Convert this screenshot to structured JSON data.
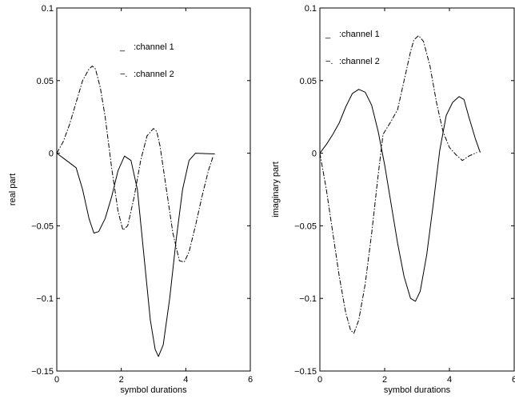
{
  "chart_data": [
    {
      "type": "line",
      "xlabel": "symbol durations",
      "ylabel": "real part",
      "xlim": [
        0,
        6
      ],
      "ylim": [
        -0.15,
        0.1
      ],
      "xticks": [
        0,
        2,
        4,
        6
      ],
      "yticks": [
        -0.15,
        -0.1,
        -0.05,
        0,
        0.05,
        0.1
      ],
      "xtick_labels": [
        "0",
        "2",
        "4",
        "6"
      ],
      "ytick_labels": [
        "−0.15",
        "−0.1",
        "−0.05",
        "0",
        "0.05",
        "0.1"
      ],
      "grid": false,
      "legend_placement": "top-right",
      "legend": [
        {
          "marker": "_",
          "text": ":channel 1",
          "style": "solid"
        },
        {
          "marker": "−.",
          "text": ":channel 2",
          "style": "dashdot"
        }
      ],
      "series": [
        {
          "style": "solid",
          "x": [
            0,
            0.3,
            0.6,
            0.8,
            1.0,
            1.15,
            1.3,
            1.5,
            1.7,
            1.9,
            2.1,
            2.3,
            2.5,
            2.7,
            2.9,
            3.05,
            3.15,
            3.3,
            3.5,
            3.7,
            3.9,
            4.1,
            4.3,
            4.9
          ],
          "y": [
            0,
            -0.005,
            -0.01,
            -0.025,
            -0.045,
            -0.055,
            -0.054,
            -0.045,
            -0.03,
            -0.012,
            -0.002,
            -0.005,
            -0.025,
            -0.07,
            -0.115,
            -0.135,
            -0.14,
            -0.132,
            -0.1,
            -0.06,
            -0.025,
            -0.005,
            0,
            -0.0005
          ]
        },
        {
          "style": "dashdot",
          "x": [
            0,
            0.2,
            0.4,
            0.6,
            0.8,
            1.0,
            1.1,
            1.2,
            1.35,
            1.5,
            1.7,
            1.9,
            2.05,
            2.2,
            2.4,
            2.6,
            2.8,
            3.0,
            3.1,
            3.2,
            3.4,
            3.6,
            3.8,
            3.95,
            4.1,
            4.3,
            4.5,
            4.7,
            4.85
          ],
          "y": [
            0,
            0.008,
            0.02,
            0.035,
            0.05,
            0.058,
            0.06,
            0.058,
            0.045,
            0.025,
            -0.01,
            -0.04,
            -0.053,
            -0.05,
            -0.03,
            -0.005,
            0.012,
            0.017,
            0.015,
            0.005,
            -0.025,
            -0.055,
            -0.074,
            -0.075,
            -0.068,
            -0.05,
            -0.03,
            -0.012,
            -0.002
          ]
        }
      ]
    },
    {
      "type": "line",
      "xlabel": "symbol durations",
      "ylabel": "imaginary part",
      "xlim": [
        0,
        6
      ],
      "ylim": [
        -0.15,
        0.1
      ],
      "xticks": [
        0,
        2,
        4,
        6
      ],
      "yticks": [
        -0.15,
        -0.1,
        -0.05,
        0,
        0.05,
        0.1
      ],
      "xtick_labels": [
        "0",
        "2",
        "4",
        "6"
      ],
      "ytick_labels": [
        "−0.15",
        "−0.1",
        "−0.05",
        "0",
        "0.05",
        "0.1"
      ],
      "grid": false,
      "legend_placement": "top-left",
      "legend": [
        {
          "marker": "_",
          "text": ":channel 1",
          "style": "solid"
        },
        {
          "marker": "−.",
          "text": ":channel 2",
          "style": "dashdot"
        }
      ],
      "series": [
        {
          "style": "solid",
          "x": [
            0,
            0.2,
            0.4,
            0.6,
            0.8,
            1.0,
            1.2,
            1.4,
            1.6,
            1.8,
            2.0,
            2.2,
            2.4,
            2.6,
            2.8,
            2.95,
            3.1,
            3.3,
            3.5,
            3.7,
            3.9,
            4.1,
            4.3,
            4.45,
            4.6,
            4.8,
            4.95
          ],
          "y": [
            0,
            0.006,
            0.013,
            0.021,
            0.032,
            0.041,
            0.044,
            0.042,
            0.033,
            0.015,
            -0.008,
            -0.035,
            -0.062,
            -0.085,
            -0.1,
            -0.102,
            -0.095,
            -0.07,
            -0.035,
            0.002,
            0.026,
            0.035,
            0.039,
            0.037,
            0.025,
            0.01,
            0.0005
          ]
        },
        {
          "style": "dashdot",
          "x": [
            0,
            0.2,
            0.4,
            0.6,
            0.8,
            0.95,
            1.05,
            1.2,
            1.4,
            1.6,
            1.8,
            1.95,
            2.2,
            2.4,
            2.6,
            2.8,
            2.9,
            3.05,
            3.2,
            3.4,
            3.6,
            3.8,
            4.0,
            4.2,
            4.4,
            4.6,
            4.85
          ],
          "y": [
            0,
            -0.025,
            -0.055,
            -0.085,
            -0.11,
            -0.122,
            -0.124,
            -0.115,
            -0.09,
            -0.055,
            -0.015,
            0.013,
            0.022,
            0.03,
            0.05,
            0.07,
            0.078,
            0.081,
            0.077,
            0.06,
            0.035,
            0.015,
            0.004,
            -0.001,
            -0.005,
            -0.002,
            0.0005
          ]
        }
      ]
    }
  ]
}
